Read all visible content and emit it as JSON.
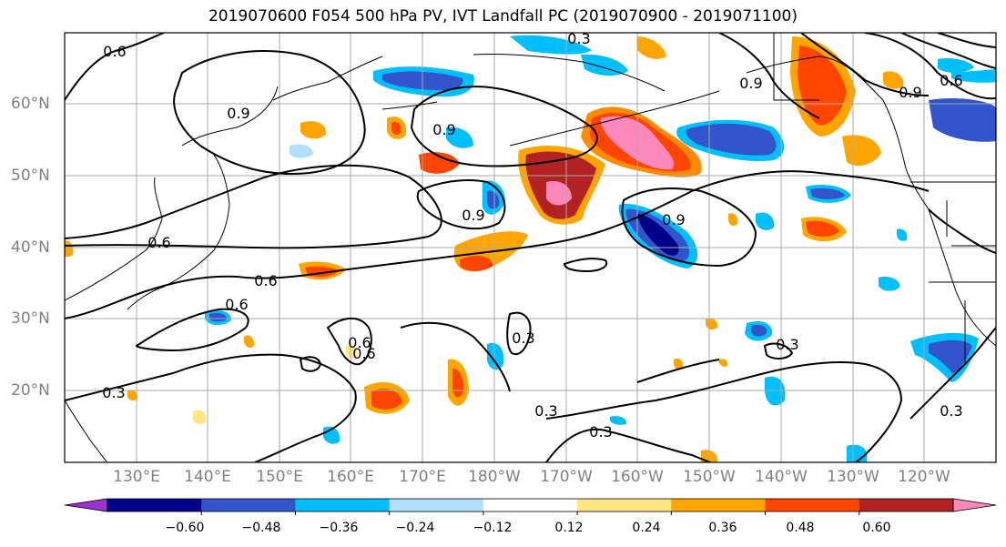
{
  "title": "2019070600 F054 500 hPa PV, IVT Landfall PC (2019070900 - 2019071100)",
  "lat_labels": [
    "60°N",
    "50°N",
    "40°N",
    "30°N",
    "20°N"
  ],
  "lon_labels": [
    "130°E",
    "140°E",
    "150°E",
    "160°E",
    "170°E",
    "180°W",
    "170°W",
    "160°W",
    "150°W",
    "140°W",
    "130°W",
    "120°W"
  ],
  "contour_labels": [
    "0.6",
    "0.9",
    "0.9",
    "0.3",
    "0.6",
    "0.9",
    "0.9",
    "0.9",
    "0.9",
    "0.6",
    "0.6",
    "0.6",
    "0.6",
    "0.3",
    "0.6",
    "0.3",
    "0.3",
    "0.3",
    "0.3",
    "0.3"
  ],
  "colorbar": {
    "tick_labels": [
      "−0.60",
      "−0.48",
      "−0.36",
      "−0.24",
      "−0.12",
      "0.12",
      "0.24",
      "0.36",
      "0.48",
      "0.60"
    ],
    "colors": [
      "#9933cc",
      "#00008b",
      "#3355cc",
      "#00bfff",
      "#b0e0ff",
      "#ffffff",
      "#ffe680",
      "#ffa500",
      "#ff4500",
      "#b22222",
      "#ff88bb"
    ]
  }
}
